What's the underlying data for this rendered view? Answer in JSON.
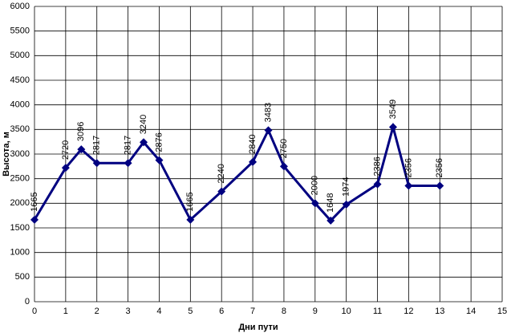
{
  "chart_data": {
    "type": "line",
    "x_label": "Дни пути",
    "y_label": "Высота, м",
    "x": [
      0,
      1,
      1.5,
      2,
      3,
      3.5,
      4,
      5,
      6,
      7,
      7.5,
      8,
      9,
      9.5,
      10,
      11,
      11.5,
      12,
      13
    ],
    "series": [
      {
        "name": "Высота",
        "color": "#000080",
        "values": [
          1665,
          2720,
          3096,
          2817,
          2817,
          3240,
          2876,
          1665,
          2240,
          2840,
          3483,
          2750,
          2000,
          1648,
          1974,
          2386,
          3549,
          2356,
          2356
        ]
      }
    ],
    "xlim": [
      0,
      15
    ],
    "xticks": [
      0,
      1,
      2,
      3,
      4,
      5,
      6,
      7,
      8,
      9,
      10,
      11,
      12,
      13,
      14,
      15
    ],
    "ylim": [
      0,
      6000
    ],
    "yticks": [
      0,
      500,
      1000,
      1500,
      2000,
      2500,
      3000,
      3500,
      4000,
      4500,
      5000,
      5500,
      6000
    ],
    "grid": true
  }
}
